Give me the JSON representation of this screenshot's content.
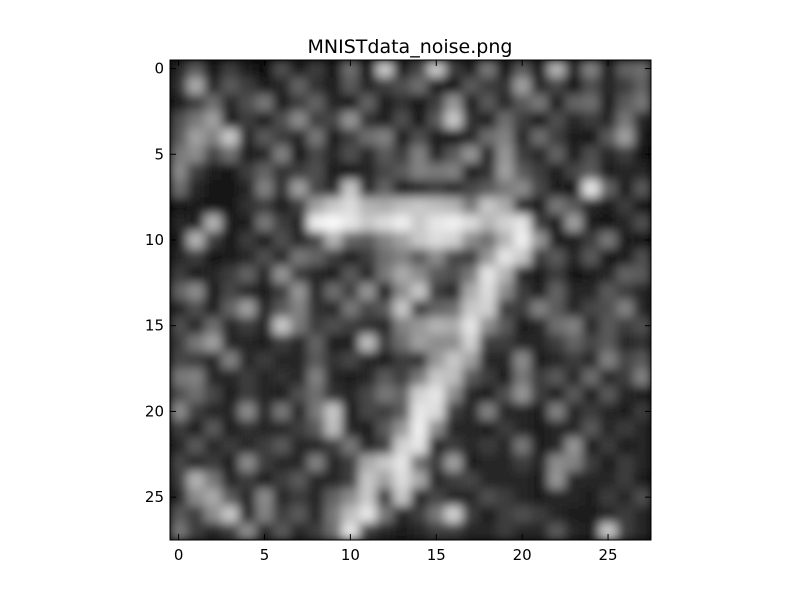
{
  "chart_data": {
    "type": "heatmap",
    "title": "MNISTdata_noise.png",
    "xlabel": "",
    "ylabel": "",
    "colormap": "grayscale",
    "interpolation": "bilinear",
    "grid": false,
    "origin": "upper",
    "xlim": [
      -0.5,
      27.5
    ],
    "ylim": [
      27.5,
      -0.5
    ],
    "x_ticks": [
      0,
      5,
      10,
      15,
      20,
      25
    ],
    "y_ticks": [
      0,
      5,
      10,
      15,
      20,
      25
    ],
    "x_tick_labels": [
      "0",
      "5",
      "10",
      "15",
      "20",
      "25"
    ],
    "y_tick_labels": [
      "0",
      "5",
      "10",
      "15",
      "20",
      "25"
    ],
    "value_range": [
      0,
      255
    ],
    "matrix": [
      [
        40,
        90,
        20,
        60,
        30,
        10,
        80,
        30,
        60,
        20,
        110,
        10,
        200,
        30,
        70,
        200,
        60,
        30,
        120,
        20,
        90,
        30,
        180,
        40,
        130,
        30,
        100,
        110
      ],
      [
        50,
        170,
        40,
        90,
        60,
        30,
        40,
        100,
        50,
        30,
        90,
        40,
        60,
        80,
        110,
        30,
        20,
        90,
        60,
        50,
        160,
        40,
        70,
        20,
        80,
        40,
        60,
        100
      ],
      [
        30,
        60,
        110,
        40,
        80,
        120,
        30,
        60,
        100,
        40,
        20,
        100,
        30,
        50,
        20,
        60,
        150,
        30,
        90,
        40,
        90,
        120,
        30,
        100,
        110,
        30,
        90,
        120
      ],
      [
        80,
        120,
        160,
        30,
        60,
        30,
        80,
        140,
        60,
        70,
        150,
        50,
        30,
        80,
        20,
        90,
        200,
        50,
        30,
        110,
        60,
        20,
        80,
        40,
        60,
        40,
        120,
        40
      ],
      [
        90,
        160,
        130,
        200,
        40,
        90,
        60,
        40,
        120,
        30,
        60,
        110,
        130,
        30,
        80,
        30,
        20,
        40,
        110,
        130,
        40,
        110,
        60,
        30,
        20,
        90,
        160,
        30
      ],
      [
        120,
        140,
        70,
        110,
        30,
        40,
        130,
        20,
        70,
        40,
        80,
        40,
        90,
        60,
        130,
        40,
        90,
        150,
        40,
        150,
        60,
        40,
        100,
        30,
        80,
        40,
        60,
        20
      ],
      [
        140,
        60,
        30,
        20,
        60,
        100,
        50,
        60,
        80,
        30,
        20,
        40,
        70,
        90,
        130,
        120,
        130,
        30,
        50,
        160,
        90,
        60,
        30,
        70,
        90,
        30,
        40,
        40
      ],
      [
        110,
        40,
        20,
        20,
        40,
        130,
        50,
        160,
        70,
        40,
        200,
        40,
        100,
        30,
        40,
        60,
        40,
        70,
        90,
        120,
        140,
        70,
        30,
        20,
        230,
        100,
        30,
        90
      ],
      [
        20,
        30,
        20,
        20,
        50,
        60,
        30,
        60,
        160,
        200,
        220,
        180,
        170,
        190,
        200,
        190,
        180,
        120,
        200,
        170,
        40,
        30,
        120,
        90,
        40,
        30,
        60,
        20
      ],
      [
        40,
        30,
        180,
        30,
        30,
        120,
        60,
        40,
        240,
        250,
        230,
        200,
        220,
        240,
        200,
        230,
        240,
        220,
        180,
        210,
        230,
        60,
        30,
        160,
        30,
        20,
        40,
        80
      ],
      [
        30,
        180,
        60,
        20,
        60,
        30,
        80,
        40,
        70,
        180,
        100,
        90,
        130,
        160,
        200,
        220,
        210,
        140,
        110,
        180,
        240,
        150,
        30,
        30,
        60,
        120,
        30,
        20
      ],
      [
        40,
        60,
        20,
        30,
        40,
        80,
        40,
        120,
        100,
        60,
        30,
        60,
        110,
        130,
        90,
        140,
        70,
        60,
        150,
        230,
        200,
        60,
        90,
        40,
        90,
        20,
        30,
        80
      ],
      [
        60,
        30,
        40,
        60,
        100,
        40,
        150,
        60,
        40,
        30,
        90,
        40,
        120,
        170,
        140,
        90,
        80,
        120,
        230,
        180,
        40,
        30,
        60,
        20,
        30,
        40,
        100,
        90
      ],
      [
        100,
        140,
        30,
        70,
        40,
        30,
        60,
        150,
        40,
        110,
        60,
        150,
        30,
        140,
        200,
        60,
        40,
        170,
        220,
        140,
        60,
        30,
        100,
        40,
        40,
        90,
        60,
        40
      ],
      [
        40,
        80,
        30,
        100,
        160,
        40,
        90,
        130,
        50,
        40,
        120,
        70,
        90,
        200,
        60,
        100,
        110,
        200,
        210,
        60,
        60,
        130,
        90,
        40,
        70,
        80,
        130,
        40
      ],
      [
        80,
        40,
        110,
        40,
        60,
        40,
        200,
        120,
        60,
        80,
        60,
        50,
        40,
        130,
        150,
        180,
        170,
        230,
        140,
        90,
        30,
        40,
        110,
        130,
        40,
        90,
        60,
        80
      ],
      [
        60,
        120,
        160,
        40,
        40,
        30,
        60,
        40,
        100,
        30,
        30,
        190,
        60,
        110,
        160,
        140,
        140,
        210,
        60,
        60,
        40,
        40,
        60,
        100,
        70,
        90,
        40,
        50
      ],
      [
        70,
        60,
        40,
        130,
        40,
        60,
        40,
        40,
        90,
        50,
        70,
        40,
        30,
        60,
        50,
        150,
        200,
        160,
        40,
        40,
        140,
        30,
        40,
        60,
        40,
        130,
        70,
        90
      ],
      [
        120,
        130,
        40,
        40,
        60,
        40,
        50,
        40,
        130,
        40,
        30,
        40,
        90,
        60,
        120,
        200,
        190,
        90,
        60,
        30,
        120,
        60,
        90,
        40,
        110,
        40,
        60,
        130
      ],
      [
        80,
        110,
        70,
        30,
        60,
        40,
        30,
        80,
        110,
        50,
        40,
        70,
        120,
        100,
        210,
        230,
        140,
        40,
        30,
        80,
        150,
        60,
        30,
        90,
        30,
        90,
        40,
        30
      ],
      [
        140,
        60,
        40,
        40,
        140,
        40,
        120,
        40,
        120,
        200,
        30,
        70,
        60,
        90,
        230,
        220,
        60,
        40,
        130,
        40,
        40,
        30,
        130,
        40,
        60,
        40,
        30,
        60
      ],
      [
        60,
        30,
        90,
        30,
        50,
        40,
        40,
        60,
        90,
        190,
        40,
        30,
        90,
        150,
        240,
        140,
        40,
        40,
        30,
        60,
        40,
        30,
        40,
        40,
        90,
        40,
        60,
        40
      ],
      [
        40,
        90,
        40,
        60,
        40,
        60,
        90,
        40,
        40,
        60,
        120,
        40,
        60,
        210,
        230,
        40,
        60,
        40,
        60,
        40,
        120,
        30,
        40,
        150,
        30,
        60,
        30,
        40
      ],
      [
        70,
        40,
        60,
        30,
        140,
        60,
        40,
        40,
        130,
        40,
        60,
        170,
        200,
        230,
        110,
        60,
        160,
        30,
        40,
        40,
        60,
        40,
        140,
        130,
        60,
        30,
        60,
        40
      ],
      [
        60,
        180,
        120,
        40,
        60,
        30,
        60,
        90,
        40,
        40,
        60,
        200,
        160,
        220,
        170,
        40,
        60,
        70,
        40,
        40,
        40,
        30,
        150,
        40,
        40,
        40,
        60,
        30
      ],
      [
        40,
        140,
        170,
        90,
        40,
        140,
        40,
        60,
        40,
        100,
        140,
        200,
        60,
        200,
        40,
        70,
        40,
        40,
        80,
        60,
        40,
        30,
        40,
        40,
        30,
        60,
        40,
        80
      ],
      [
        90,
        60,
        140,
        200,
        40,
        130,
        60,
        90,
        40,
        120,
        190,
        230,
        120,
        40,
        60,
        120,
        210,
        60,
        30,
        60,
        80,
        60,
        40,
        30,
        30,
        40,
        60,
        40
      ],
      [
        120,
        60,
        40,
        60,
        140,
        40,
        90,
        40,
        60,
        110,
        230,
        60,
        40,
        30,
        40,
        60,
        60,
        40,
        40,
        60,
        40,
        40,
        90,
        40,
        30,
        200,
        60,
        40
      ]
    ]
  }
}
